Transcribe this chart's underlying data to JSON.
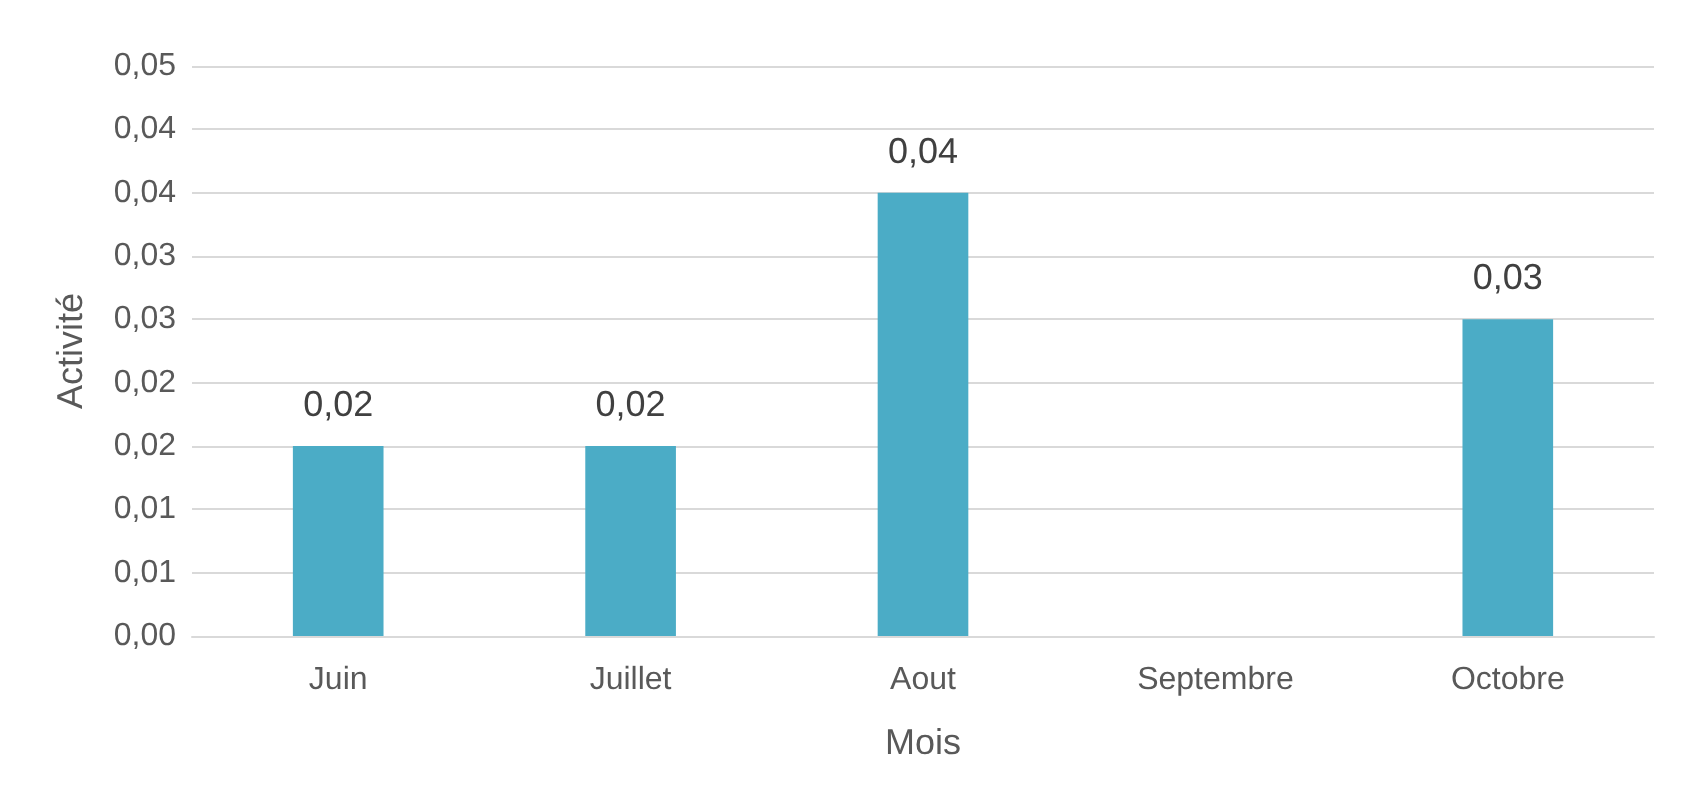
{
  "chart_data": {
    "type": "bar",
    "xlabel": "Mois",
    "ylabel": "Activité",
    "categories": [
      "Juin",
      "Juillet",
      "Aout",
      "Septembre",
      "Octobre"
    ],
    "values": [
      0.015,
      0.015,
      0.035,
      null,
      0.025
    ],
    "value_labels": [
      "0,02",
      "0,02",
      "0,04",
      null,
      "0,03"
    ],
    "color": "#4bacc6",
    "ylim": [
      0,
      0.045
    ],
    "yticks": [
      {
        "value": 0,
        "label": "0,00"
      },
      {
        "value": 0.005,
        "label": "0,01"
      },
      {
        "value": 0.01,
        "label": "0,01"
      },
      {
        "value": 0.015,
        "label": "0,02"
      },
      {
        "value": 0.02,
        "label": "0,02"
      },
      {
        "value": 0.025,
        "label": "0,03"
      },
      {
        "value": 0.03,
        "label": "0,03"
      },
      {
        "value": 0.035,
        "label": "0,04"
      },
      {
        "value": 0.04,
        "label": "0,04"
      },
      {
        "value": 0.045,
        "label": "0,05"
      }
    ],
    "grid": "y"
  }
}
